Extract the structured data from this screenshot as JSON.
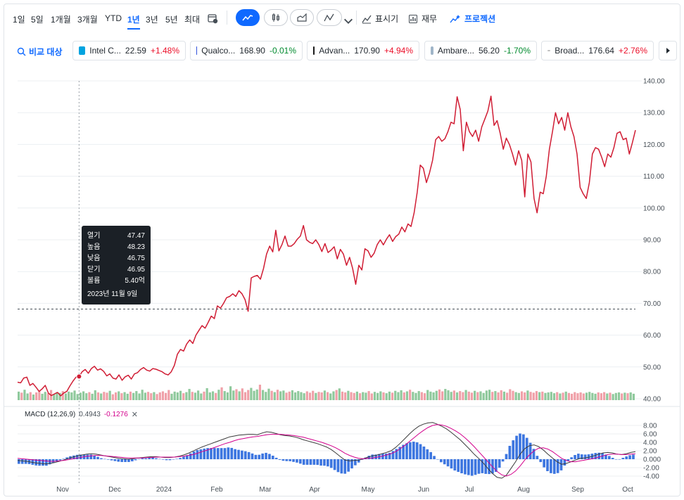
{
  "toolbar": {
    "ranges": [
      "1일",
      "5일",
      "1개월",
      "3개월",
      "YTD",
      "1년",
      "3년",
      "5년",
      "최대"
    ],
    "active_range": "1년",
    "indicators_label": "표시기",
    "financials_label": "재무",
    "projection_label": "프로젝션"
  },
  "compare": {
    "label": "비교 대상",
    "chips": [
      {
        "name": "Intel C...",
        "price": "22.59",
        "change": "+1.48%",
        "dir": "up",
        "logo_color": "#00a3e0"
      },
      {
        "name": "Qualco...",
        "price": "168.90",
        "change": "-0.01%",
        "dir": "down",
        "logo_color": "#3253dc"
      },
      {
        "name": "Advan...",
        "price": "170.90",
        "change": "+4.94%",
        "dir": "up",
        "logo_color": "#1a1a1a"
      },
      {
        "name": "Ambare...",
        "price": "56.20",
        "change": "-1.70%",
        "dir": "down",
        "logo_color": "#9fb5c8"
      },
      {
        "name": "Broad...",
        "price": "176.64",
        "change": "+2.76%",
        "dir": "up",
        "logo_color": "#c0c0c0"
      }
    ]
  },
  "tooltip": {
    "rows": [
      {
        "label": "열기",
        "value": "47.47"
      },
      {
        "label": "높음",
        "value": "48.23"
      },
      {
        "label": "낮음",
        "value": "46.75"
      },
      {
        "label": "닫기",
        "value": "46.95"
      },
      {
        "label": "볼륨",
        "value": "5.40억"
      }
    ],
    "date": "2023년 11월 9일"
  },
  "macd": {
    "name": "MACD (12,26,9)",
    "value1": "0.4943",
    "value2": "-0.1276"
  },
  "colors": {
    "price_line": "#d01d34",
    "macd_line": "#3b3b3b",
    "signal_line": "#d3008c",
    "hist": "#3d76e0",
    "vol_up": "#8fc99c",
    "vol_down": "#f0a0a8",
    "accent": "#0f69ff"
  },
  "chart_data": [
    {
      "type": "line",
      "series": [
        {
          "values": [
            45.2,
            45.0,
            46.5,
            46.8,
            44.2,
            44.8,
            43.6,
            42.3,
            43.1,
            44.2,
            41.8,
            41.0,
            41.5,
            42.0,
            40.9,
            41.8,
            42.3,
            44.0,
            45.5,
            46.8,
            47.0,
            48.5,
            49.2,
            48.0,
            49.5,
            50.2,
            49.0,
            49.4,
            48.6,
            47.2,
            47.8,
            46.5,
            46.2,
            47.5,
            45.8,
            46.9,
            47.4,
            46.2,
            47.8,
            48.2,
            49.2,
            49.8,
            49.0,
            48.7,
            49.5,
            49.3,
            48.9,
            48.5,
            47.8,
            47.5,
            48.5,
            50.5,
            54.0,
            55.5,
            55.0,
            57.2,
            58.5,
            57.4,
            60.0,
            61.5,
            63.0,
            62.2,
            64.0,
            66.0,
            65.2,
            69.2,
            68.5,
            70.0,
            71.8,
            72.2,
            73.0,
            72.2,
            74.0,
            73.0,
            71.2,
            67.5,
            78.0,
            78.5,
            78.8,
            77.6,
            81.0,
            85.5,
            88.0,
            86.2,
            93.0,
            86.5,
            88.5,
            91.2,
            88.0,
            88.0,
            88.8,
            90.2,
            91.2,
            94.5,
            90.0,
            89.2,
            88.8,
            90.0,
            88.5,
            86.3,
            88.8,
            86.0,
            86.8,
            87.8,
            84.0,
            87.0,
            85.5,
            82.0,
            84.5,
            81.0,
            76.0,
            82.0,
            80.5,
            87.2,
            86.5,
            84.5,
            85.8,
            88.5,
            90.0,
            88.4,
            90.2,
            91.6,
            89.5,
            91.0,
            91.8,
            94.0,
            92.5,
            95.0,
            94.2,
            98.5,
            105.0,
            113.5,
            112.5,
            108.0,
            111.0,
            115.0,
            121.5,
            122.5,
            121.0,
            121.8,
            124.0,
            127.0,
            126.5,
            135.0,
            131.0,
            118.0,
            127.0,
            124.0,
            122.5,
            124.5,
            121.0,
            125.5,
            128.0,
            130.5,
            135.2,
            126.0,
            127.5,
            123.5,
            118.5,
            122.0,
            120.0,
            117.0,
            113.5,
            118.0,
            115.0,
            103.5,
            117.0,
            114.5,
            103.0,
            98.5,
            105.0,
            104.5,
            110.0,
            118.5,
            124.0,
            130.0,
            126.5,
            128.5,
            124.5,
            130.0,
            125.5,
            122.5,
            117.0,
            106.5,
            104.5,
            103.0,
            108.0,
            117.0,
            119.0,
            118.5,
            116.0,
            113.0,
            117.0,
            116.0,
            119.0,
            123.5,
            124.0,
            121.5,
            122.0,
            117.0,
            120.5,
            124.5
          ]
        }
      ],
      "ylim": [
        40,
        140
      ],
      "yticks": [
        "140.00",
        "130.00",
        "120.00",
        "110.00",
        "100.00",
        "90.00",
        "80.00",
        "70.00",
        "60.00",
        "50.00",
        "40.00"
      ],
      "dashed_reference": 68.2,
      "xticks": [
        "Nov",
        "Dec",
        "2024",
        "Feb",
        "Mar",
        "Apr",
        "May",
        "Jun",
        "Jul",
        "Aug",
        "Sep",
        "Oct"
      ],
      "grid": true
    },
    {
      "type": "bar",
      "series": [
        {
          "values": [
            3.2,
            2.8,
            3.9,
            2.5,
            3.0,
            2.1,
            2.9,
            3.5,
            2.4,
            3.1,
            2.6,
            3.8,
            2.2,
            3.0,
            2.7,
            3.4,
            2.5,
            3.2,
            2.9,
            3.6,
            2.3,
            2.8,
            3.3,
            2.6,
            3.0,
            2.4,
            3.7,
            2.9,
            2.5,
            3.1,
            2.8,
            3.5,
            2.2,
            2.9,
            3.3,
            2.6,
            3.0,
            2.4,
            3.2,
            2.7,
            3.4,
            2.5,
            3.9,
            2.8,
            3.1,
            2.6,
            3.0,
            2.3,
            2.9,
            3.3,
            2.7,
            3.8,
            2.4,
            3.2,
            2.9,
            3.5,
            2.6,
            3.0,
            4.2,
            3.1,
            2.8,
            3.6,
            2.5,
            3.2,
            4.5,
            2.9,
            3.3,
            2.7,
            3.9,
            4.8,
            3.4,
            2.9,
            5.2,
            3.6,
            4.1,
            3.3,
            4.4,
            3.0,
            3.8,
            4.6,
            3.5,
            4.0,
            5.8,
            3.8,
            3.1,
            4.3,
            3.5,
            3.0,
            3.9,
            3.3,
            3.6,
            2.8,
            3.2,
            3.7,
            2.9,
            3.4,
            3.0,
            2.6,
            3.3,
            2.8,
            3.5,
            2.7,
            3.1,
            2.9,
            3.6,
            3.0,
            2.5,
            3.3,
            3.8,
            4.4,
            3.2,
            2.9,
            3.5,
            3.0,
            2.7,
            3.2,
            2.6,
            3.0,
            2.8,
            3.4,
            2.5,
            3.1,
            2.7,
            3.3,
            2.9,
            2.6,
            3.2,
            2.8,
            3.5,
            3.0,
            3.7,
            2.9,
            3.3,
            3.9,
            3.1,
            2.7,
            3.4,
            3.0,
            2.6,
            3.8,
            3.2,
            2.9,
            3.5,
            4.0,
            3.3,
            4.2,
            3.7,
            3.1,
            3.6,
            2.9,
            3.4,
            3.0,
            3.8,
            3.2,
            2.8,
            3.5,
            3.0,
            3.3,
            2.7,
            3.6,
            3.9,
            3.1,
            3.4,
            2.9,
            3.7,
            3.2,
            2.8,
            4.1,
            3.5,
            3.0,
            2.7,
            3.3,
            2.9,
            3.6,
            3.1,
            2.8,
            3.4,
            3.0,
            3.2,
            2.7,
            2.9,
            3.1,
            2.6,
            3.0,
            2.5,
            2.8,
            3.2,
            2.7,
            2.4,
            3.0,
            2.6,
            2.9,
            2.5,
            2.8,
            3.1,
            2.7,
            2.4,
            2.9,
            2.6,
            3.0,
            2.5,
            2.8,
            2.3,
            2.7,
            2.9,
            2.5,
            2.8,
            2.6,
            2.9,
            2.4
          ]
        }
      ]
    },
    {
      "type": "line",
      "series": [
        {
          "values": [
            -0.3,
            -0.4,
            -0.5,
            -0.7,
            -0.9,
            -1.0,
            -1.1,
            -1.0,
            -0.8,
            -0.5,
            -0.2,
            0.2,
            0.5,
            0.8,
            1.0,
            1.2,
            1.3,
            1.2,
            1.0,
            0.8,
            0.6,
            0.4,
            0.2,
            0.1,
            0.0,
            0.1,
            0.3,
            0.4,
            0.5,
            0.6,
            0.6,
            0.5,
            0.4,
            0.4,
            0.5,
            0.7,
            1.0,
            1.4,
            1.9,
            2.4,
            2.9,
            3.3,
            3.7,
            4.1,
            4.5,
            4.9,
            5.3,
            5.5,
            5.7,
            5.8,
            5.9,
            5.9,
            5.8,
            6.2,
            6.5,
            6.4,
            6.1,
            5.8,
            5.6,
            5.5,
            5.3,
            5.0,
            4.6,
            4.3,
            4.0,
            3.7,
            3.3,
            2.9,
            2.3,
            1.5,
            0.6,
            -0.2,
            -0.4,
            -0.3,
            -0.2,
            0.1,
            0.5,
            0.8,
            1.0,
            1.3,
            1.6,
            2.0,
            2.8,
            3.8,
            4.9,
            6.0,
            7.0,
            7.8,
            8.3,
            8.6,
            8.7,
            8.3,
            7.8,
            7.2,
            6.4,
            5.5,
            4.6,
            3.5,
            2.4,
            1.2,
            0.2,
            -0.9,
            -2.2,
            -3.4,
            -4.3,
            -4.5,
            -3.8,
            -2.2,
            -0.6,
            1.2,
            2.5,
            3.2,
            3.4,
            3.0,
            2.2,
            1.2,
            0.3,
            -0.6,
            -1.2,
            -1.0,
            -0.6,
            -0.2,
            0.2,
            0.3,
            0.5,
            0.8,
            1.2,
            1.5,
            1.6,
            1.5,
            1.2,
            1.1,
            1.3,
            1.6,
            1.8
          ]
        },
        {
          "values": [
            0.2,
            0.1,
            0.0,
            -0.1,
            -0.2,
            -0.3,
            -0.4,
            -0.5,
            -0.5,
            -0.4,
            -0.3,
            -0.1,
            0.1,
            0.3,
            0.5,
            0.7,
            0.8,
            0.9,
            0.9,
            0.8,
            0.7,
            0.6,
            0.5,
            0.4,
            0.3,
            0.3,
            0.3,
            0.3,
            0.4,
            0.4,
            0.5,
            0.5,
            0.5,
            0.5,
            0.5,
            0.6,
            0.7,
            0.9,
            1.1,
            1.4,
            1.8,
            2.1,
            2.5,
            2.9,
            3.3,
            3.7,
            4.0,
            4.4,
            4.7,
            4.9,
            5.1,
            5.3,
            5.4,
            5.6,
            5.8,
            5.9,
            5.9,
            5.9,
            5.8,
            5.7,
            5.6,
            5.4,
            5.2,
            4.9,
            4.6,
            4.3,
            4.0,
            3.6,
            3.2,
            2.7,
            2.1,
            1.4,
            0.9,
            0.5,
            0.2,
            0.1,
            0.2,
            0.3,
            0.5,
            0.7,
            1.0,
            1.3,
            1.8,
            2.5,
            3.3,
            4.2,
            5.1,
            6.0,
            6.8,
            7.5,
            8.0,
            8.2,
            8.1,
            7.8,
            7.3,
            6.7,
            6.0,
            5.1,
            4.1,
            3.0,
            1.8,
            0.6,
            -0.6,
            -1.8,
            -2.9,
            -3.7,
            -4.0,
            -3.6,
            -2.8,
            -1.6,
            -0.2,
            1.0,
            2.0,
            2.6,
            2.7,
            2.4,
            1.8,
            1.0,
            0.2,
            -0.3,
            -0.6,
            -0.6,
            -0.4,
            -0.2,
            0.0,
            0.2,
            0.5,
            0.8,
            1.1,
            1.2,
            1.2,
            1.1,
            1.1,
            1.2,
            1.3
          ]
        }
      ],
      "yticks": [
        "8.00",
        "6.00",
        "4.00",
        "2.00",
        "0.000",
        "-2.00",
        "-4.00"
      ],
      "ylim": [
        -5,
        9
      ]
    }
  ]
}
